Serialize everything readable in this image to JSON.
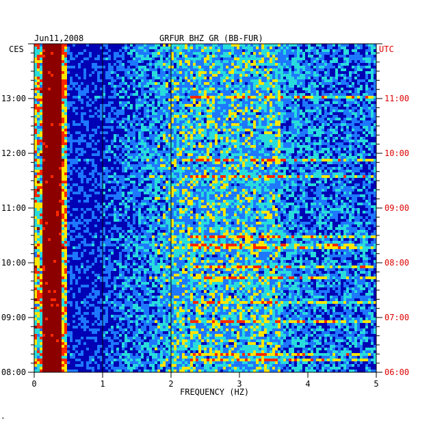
{
  "header": {
    "date": "Jun11,2008",
    "station": "GRFUR BHZ GR (BB-FUR)"
  },
  "chart_data": {
    "type": "heatmap",
    "title": "GRFUR BHZ GR (BB-FUR)",
    "date": "Jun11,2008",
    "xlabel": "FREQUENCY (HZ)",
    "x_ticks": [
      "0",
      "1",
      "2",
      "3",
      "4",
      "5"
    ],
    "xlim": [
      0,
      5
    ],
    "left_axis_label": "CES",
    "left_ticks": [
      "08:00",
      "09:00",
      "10:00",
      "11:00",
      "12:00",
      "13:00"
    ],
    "right_axis_label": "UTC",
    "right_ticks": [
      "06:00",
      "07:00",
      "08:00",
      "09:00",
      "10:00",
      "11:00"
    ],
    "time_range_utc": [
      "06:00",
      "12:00"
    ],
    "colors": {
      "low": "#0000b4",
      "mid_low": "#1e78ff",
      "mid": "#28dcdc",
      "mid_high": "#ffe600",
      "high": "#ff2800",
      "peak": "#8c0000",
      "utc_text": "#dd0000"
    },
    "features": {
      "microseism_peak_hz": [
        0.12,
        0.4
      ],
      "vertical_lines_hz": [
        1,
        2
      ]
    }
  },
  "footer": {
    "mark": "\""
  }
}
